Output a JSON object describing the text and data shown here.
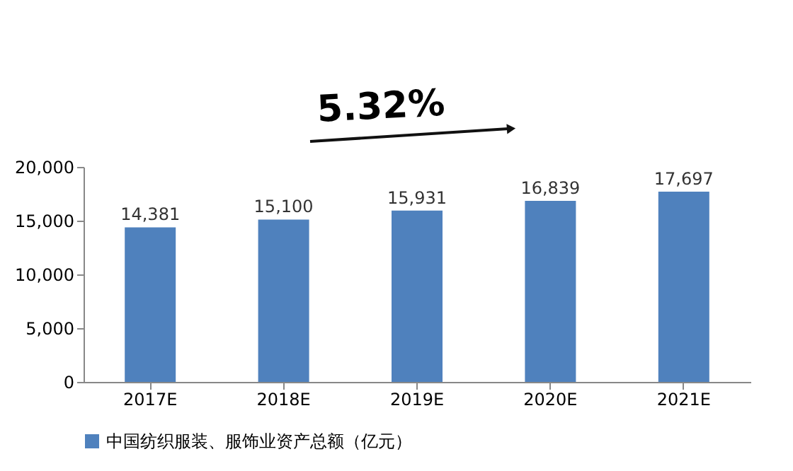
{
  "chart_data": {
    "type": "bar",
    "categories": [
      "2017E",
      "2018E",
      "2019E",
      "2020E",
      "2021E"
    ],
    "series": [
      {
        "name": "中国纺织服装、服饰业资产总额（亿元）",
        "color": "#4f81bd",
        "values": [
          14381,
          15100,
          15931,
          16839,
          17697
        ],
        "value_labels": [
          "14,381",
          "15,100",
          "15,931",
          "16,839",
          "17,697"
        ]
      }
    ],
    "ylim": [
      0,
      20000
    ],
    "yticks": [
      0,
      {
        "value": 5000,
        "label": "5,000"
      },
      {
        "value": 10000,
        "label": "10,000"
      },
      {
        "value": 15000,
        "label": "15,000"
      },
      {
        "value": 20000,
        "label": "20,000"
      }
    ],
    "grid": false,
    "legend": "bottom",
    "annotations": [
      "5.32%"
    ]
  }
}
